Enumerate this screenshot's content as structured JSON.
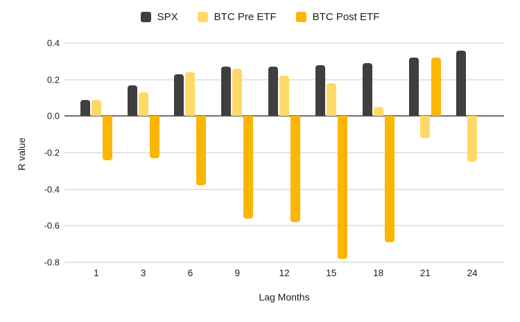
{
  "chart_data": {
    "type": "bar",
    "title": "",
    "xlabel": "Lag Months",
    "ylabel": "R value",
    "categories": [
      "1",
      "3",
      "6",
      "9",
      "12",
      "15",
      "18",
      "21",
      "24"
    ],
    "series": [
      {
        "name": "SPX",
        "color": "#3f3f3f",
        "values": [
          0.09,
          0.17,
          0.23,
          0.27,
          0.27,
          0.28,
          0.29,
          0.32,
          0.36
        ]
      },
      {
        "name": "BTC Pre ETF",
        "color": "#ffd966",
        "values": [
          0.09,
          0.13,
          0.24,
          0.26,
          0.22,
          0.18,
          0.05,
          -0.12,
          -0.25
        ]
      },
      {
        "name": "BTC Post ETF",
        "color": "#fbb600",
        "values": [
          -0.24,
          -0.23,
          -0.38,
          -0.56,
          -0.58,
          -0.78,
          -0.69,
          0.32,
          null
        ]
      }
    ],
    "ylim": [
      -0.8,
      0.4
    ],
    "ytick_step": 0.2,
    "yticks": [
      "0.4",
      "0.2",
      "0.0",
      "-0.2",
      "-0.4",
      "-0.6",
      "-0.8"
    ],
    "grid": true,
    "legend_position": "top",
    "zero_line_color": "#6f6f6f",
    "gridline_color": "#e4e4e4"
  },
  "axes": {
    "ylabel": "R value",
    "xlabel": "Lag Months"
  }
}
